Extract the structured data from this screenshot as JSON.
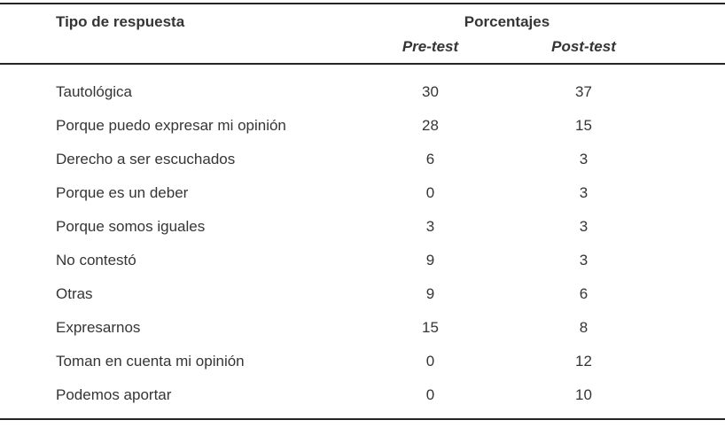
{
  "colors": {
    "text": "#353535",
    "rule": "#242424",
    "background": "#ffffff"
  },
  "table": {
    "header": {
      "col_label": "Tipo de respuesta",
      "group_label": "Porcentajes",
      "sub_columns": [
        "Pre-test",
        "Post-test"
      ]
    },
    "rows": [
      {
        "label": "Tautológica",
        "pre": "30",
        "post": "37"
      },
      {
        "label": "Porque puedo expresar mi opinión",
        "pre": "28",
        "post": "15"
      },
      {
        "label": "Derecho a ser escuchados",
        "pre": "6",
        "post": "3"
      },
      {
        "label": "Porque es un deber",
        "pre": "0",
        "post": "3"
      },
      {
        "label": "Porque somos iguales",
        "pre": "3",
        "post": "3"
      },
      {
        "label": "No contestó",
        "pre": "9",
        "post": "3"
      },
      {
        "label": "Otras",
        "pre": "9",
        "post": "6"
      },
      {
        "label": "Expresarnos",
        "pre": "15",
        "post": "8"
      },
      {
        "label": "Toman en cuenta mi opinión",
        "pre": "0",
        "post": "12"
      },
      {
        "label": "Podemos aportar",
        "pre": "0",
        "post": "10"
      }
    ]
  }
}
